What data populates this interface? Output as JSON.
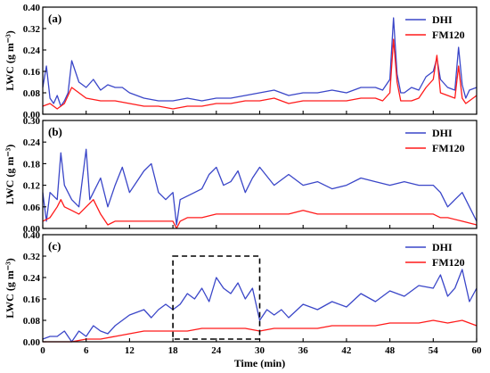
{
  "chart_data": [
    {
      "type": "line",
      "panel_label": "(a)",
      "ylabel": "LWC (g m⁻³)",
      "ylim": [
        0,
        0.4
      ],
      "yticks": [
        "0.00",
        "0.08",
        "0.16",
        "0.24",
        "0.32",
        "0.40"
      ],
      "legend": [
        "DHI",
        "FM120"
      ],
      "series": [
        {
          "name": "DHI",
          "color": "#3a46c8",
          "x": [
            0,
            0.5,
            1,
            1.5,
            2,
            2.5,
            3,
            3.5,
            4,
            5,
            6,
            7,
            8,
            9,
            10,
            11,
            12,
            14,
            16,
            18,
            20,
            22,
            24,
            26,
            28,
            30,
            32,
            34,
            36,
            38,
            40,
            42,
            44,
            46,
            47,
            48,
            48.5,
            49,
            49.5,
            50,
            51,
            52,
            53,
            54,
            54.5,
            55,
            56,
            57,
            57.5,
            58,
            58.5,
            59,
            60
          ],
          "y": [
            0.1,
            0.18,
            0.06,
            0.04,
            0.07,
            0.03,
            0.05,
            0.08,
            0.2,
            0.12,
            0.1,
            0.13,
            0.09,
            0.11,
            0.1,
            0.1,
            0.08,
            0.06,
            0.05,
            0.05,
            0.06,
            0.05,
            0.06,
            0.06,
            0.07,
            0.08,
            0.09,
            0.07,
            0.08,
            0.08,
            0.09,
            0.08,
            0.1,
            0.1,
            0.09,
            0.13,
            0.36,
            0.15,
            0.08,
            0.08,
            0.1,
            0.09,
            0.14,
            0.16,
            0.21,
            0.13,
            0.1,
            0.09,
            0.25,
            0.11,
            0.06,
            0.09,
            0.1
          ]
        },
        {
          "name": "FM120",
          "color": "#ff1a1a",
          "x": [
            0,
            1,
            2,
            3,
            4,
            6,
            8,
            10,
            12,
            14,
            16,
            18,
            20,
            22,
            24,
            26,
            28,
            30,
            32,
            34,
            36,
            38,
            40,
            42,
            44,
            46,
            47,
            48,
            48.5,
            49,
            49.5,
            50,
            51,
            52,
            53,
            54,
            54.5,
            55,
            56,
            57,
            57.5,
            58,
            58.5,
            59,
            60
          ],
          "y": [
            0.03,
            0.04,
            0.02,
            0.04,
            0.1,
            0.06,
            0.05,
            0.05,
            0.04,
            0.03,
            0.03,
            0.02,
            0.03,
            0.03,
            0.04,
            0.04,
            0.05,
            0.05,
            0.06,
            0.04,
            0.05,
            0.05,
            0.05,
            0.05,
            0.06,
            0.06,
            0.05,
            0.08,
            0.28,
            0.12,
            0.05,
            0.05,
            0.05,
            0.06,
            0.1,
            0.13,
            0.22,
            0.08,
            0.07,
            0.06,
            0.18,
            0.06,
            0.04,
            0.05,
            0.07
          ]
        }
      ]
    },
    {
      "type": "line",
      "panel_label": "(b)",
      "ylabel": "LWC (g m⁻³)",
      "ylim": [
        0,
        0.3
      ],
      "yticks": [
        "0.00",
        "0.06",
        "0.12",
        "0.18",
        "0.24",
        "0.30"
      ],
      "legend": [
        "DHI",
        "FM120"
      ],
      "series": [
        {
          "name": "DHI",
          "color": "#3a46c8",
          "x": [
            0,
            0.5,
            1,
            2,
            2.5,
            3,
            4,
            5,
            6,
            6.5,
            7,
            8,
            9,
            10,
            11,
            12,
            13,
            14,
            15,
            16,
            17,
            18,
            18.5,
            19,
            20,
            21,
            22,
            23,
            24,
            25,
            26,
            27,
            28,
            29,
            30,
            32,
            34,
            36,
            38,
            40,
            42,
            44,
            46,
            48,
            50,
            52,
            54,
            55,
            56,
            57,
            58,
            59,
            60
          ],
          "y": [
            0.1,
            0.02,
            0.1,
            0.08,
            0.21,
            0.12,
            0.08,
            0.06,
            0.22,
            0.08,
            0.1,
            0.14,
            0.06,
            0.12,
            0.17,
            0.1,
            0.13,
            0.16,
            0.18,
            0.1,
            0.08,
            0.1,
            0.01,
            0.08,
            0.09,
            0.1,
            0.11,
            0.15,
            0.17,
            0.12,
            0.13,
            0.16,
            0.1,
            0.14,
            0.17,
            0.12,
            0.15,
            0.12,
            0.13,
            0.11,
            0.12,
            0.14,
            0.13,
            0.12,
            0.13,
            0.12,
            0.12,
            0.1,
            0.06,
            0.08,
            0.1,
            0.06,
            0.02
          ]
        },
        {
          "name": "FM120",
          "color": "#ff1a1a",
          "x": [
            0,
            1,
            2,
            2.5,
            3,
            4,
            5,
            6,
            7,
            8,
            9,
            10,
            12,
            14,
            16,
            18,
            18.5,
            19,
            20,
            22,
            24,
            26,
            28,
            30,
            32,
            34,
            36,
            38,
            40,
            42,
            44,
            46,
            48,
            50,
            52,
            54,
            55,
            56,
            58,
            60
          ],
          "y": [
            0.02,
            0.03,
            0.06,
            0.08,
            0.06,
            0.05,
            0.04,
            0.06,
            0.08,
            0.04,
            0.01,
            0.02,
            0.02,
            0.02,
            0.02,
            0.02,
            0.0,
            0.02,
            0.03,
            0.03,
            0.04,
            0.04,
            0.04,
            0.04,
            0.04,
            0.04,
            0.05,
            0.04,
            0.04,
            0.04,
            0.04,
            0.04,
            0.04,
            0.04,
            0.04,
            0.04,
            0.03,
            0.03,
            0.02,
            0.01
          ]
        }
      ]
    },
    {
      "type": "line",
      "panel_label": "(c)",
      "ylabel": "LWC (g m⁻³)",
      "ylim": [
        0,
        0.4
      ],
      "yticks": [
        "0.00",
        "0.08",
        "0.16",
        "0.24",
        "0.32",
        "0.40"
      ],
      "legend": [
        "DHI",
        "FM120"
      ],
      "xlabel": "Time (min)",
      "xlim": [
        0,
        60
      ],
      "xticks": [
        "0",
        "6",
        "12",
        "18",
        "24",
        "30",
        "36",
        "42",
        "48",
        "54",
        "60"
      ],
      "highlight_box": {
        "x": [
          18,
          30
        ],
        "y": [
          0.01,
          0.32
        ]
      },
      "series": [
        {
          "name": "DHI",
          "color": "#3a46c8",
          "x": [
            0,
            1,
            2,
            3,
            4,
            5,
            6,
            7,
            8,
            9,
            10,
            11,
            12,
            13,
            14,
            15,
            16,
            17,
            18,
            19,
            20,
            21,
            22,
            23,
            24,
            25,
            26,
            27,
            28,
            29,
            30,
            31,
            32,
            33,
            34,
            36,
            38,
            40,
            42,
            44,
            46,
            48,
            50,
            52,
            54,
            55,
            56,
            57,
            58,
            59,
            60
          ],
          "y": [
            0.01,
            0.02,
            0.02,
            0.04,
            0.0,
            0.04,
            0.02,
            0.06,
            0.04,
            0.03,
            0.06,
            0.08,
            0.1,
            0.11,
            0.12,
            0.09,
            0.12,
            0.14,
            0.12,
            0.14,
            0.18,
            0.16,
            0.2,
            0.15,
            0.24,
            0.2,
            0.18,
            0.22,
            0.16,
            0.2,
            0.08,
            0.12,
            0.1,
            0.12,
            0.09,
            0.14,
            0.12,
            0.15,
            0.13,
            0.18,
            0.15,
            0.19,
            0.17,
            0.21,
            0.2,
            0.25,
            0.17,
            0.2,
            0.27,
            0.15,
            0.2
          ]
        },
        {
          "name": "FM120",
          "color": "#ff1a1a",
          "x": [
            0,
            2,
            4,
            6,
            8,
            10,
            12,
            14,
            16,
            18,
            20,
            22,
            24,
            26,
            28,
            30,
            32,
            34,
            36,
            38,
            40,
            42,
            44,
            46,
            48,
            50,
            52,
            54,
            56,
            58,
            60
          ],
          "y": [
            0.0,
            0.0,
            0.0,
            0.01,
            0.01,
            0.02,
            0.03,
            0.04,
            0.04,
            0.04,
            0.04,
            0.05,
            0.05,
            0.05,
            0.05,
            0.04,
            0.05,
            0.05,
            0.05,
            0.05,
            0.06,
            0.06,
            0.06,
            0.06,
            0.07,
            0.07,
            0.07,
            0.08,
            0.07,
            0.08,
            0.06
          ]
        }
      ]
    }
  ]
}
